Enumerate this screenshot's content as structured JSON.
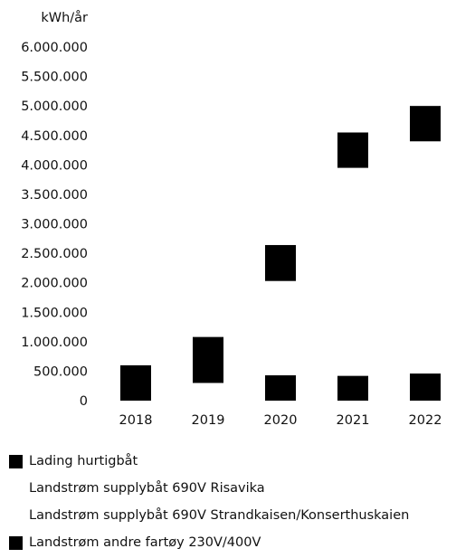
{
  "chart_data": {
    "type": "bar",
    "ylabel": "kWh/år",
    "ylim": [
      0,
      6000000
    ],
    "yticks": [
      "0",
      "500.000",
      "1.000.000",
      "1.500.000",
      "2.000.000",
      "2.500.000",
      "3.000.000",
      "3.500.000",
      "4.000.000",
      "4.500.000",
      "5.000.000",
      "5.500.000",
      "6.000.000"
    ],
    "categories": [
      "2018",
      "2019",
      "2020",
      "2021",
      "2022"
    ],
    "series": [
      {
        "name": "Landstrøm andre fartøy 230V/400V",
        "color": "#000000",
        "ranges": [
          [
            0,
            600000
          ],
          [
            300000,
            1080000
          ],
          [
            0,
            430000
          ],
          [
            0,
            420000
          ],
          [
            0,
            460000
          ]
        ]
      },
      {
        "name": "Lading hurtigbåt",
        "color": "#000000",
        "ranges": [
          null,
          null,
          [
            2030000,
            2640000
          ],
          [
            3950000,
            4550000
          ],
          [
            4400000,
            5000000
          ]
        ]
      }
    ],
    "legend": {
      "placement": "bottom",
      "items": [
        {
          "label": "Lading hurtigbåt",
          "swatch": true
        },
        {
          "label": "Landstrøm supplybåt 690V Risavika",
          "swatch": false
        },
        {
          "label": "Landstrøm supplybåt 690V Strandkaisen/Konserthuskaien",
          "swatch": false
        },
        {
          "label": "Landstrøm andre fartøy 230V/400V",
          "swatch": true
        }
      ]
    }
  }
}
